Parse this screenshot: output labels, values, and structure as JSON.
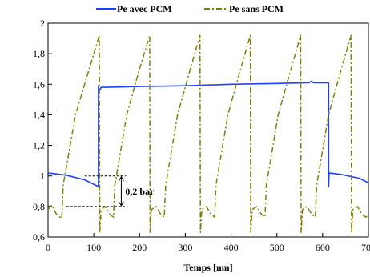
{
  "chart_data": {
    "type": "line",
    "title": "",
    "xlabel": "Temps [mn]",
    "ylabel": "",
    "xlim": [
      0,
      700
    ],
    "ylim": [
      0.6,
      2.0
    ],
    "xticks": [
      0,
      100,
      200,
      300,
      400,
      500,
      600,
      700
    ],
    "xtick_labels": [
      "0",
      "100",
      "200",
      "300",
      "400",
      "500",
      "600",
      "700"
    ],
    "yticks": [
      0.6,
      0.8,
      1.0,
      1.2,
      1.4,
      1.6,
      1.8,
      2.0
    ],
    "ytick_labels": [
      "0,6",
      "0,8",
      "1",
      "1,2",
      "1,4",
      "1,6",
      "1,8",
      "2"
    ],
    "grid": false,
    "legend_position": "top",
    "annotation": {
      "text": "0,2 bar",
      "x": 160,
      "y_top": 1.0,
      "y_bottom": 0.8
    },
    "series": [
      {
        "name": "Pe avec PCM",
        "color": "#1f3fff",
        "style": "solid",
        "points": [
          [
            0,
            1.02
          ],
          [
            40,
            1.005
          ],
          [
            80,
            0.975
          ],
          [
            110,
            0.93
          ],
          [
            110,
            1.59
          ],
          [
            112,
            1.555
          ],
          [
            116,
            1.58
          ],
          [
            130,
            1.58
          ],
          [
            200,
            1.585
          ],
          [
            300,
            1.59
          ],
          [
            400,
            1.6
          ],
          [
            500,
            1.605
          ],
          [
            570,
            1.61
          ],
          [
            576,
            1.62
          ],
          [
            580,
            1.61
          ],
          [
            613,
            1.61
          ],
          [
            613,
            0.93
          ],
          [
            614,
            1.02
          ],
          [
            640,
            1.01
          ],
          [
            680,
            0.985
          ],
          [
            700,
            0.955
          ]
        ]
      },
      {
        "name": "Pe sans PCM",
        "color": "#808000",
        "style": "dashdot",
        "points": [
          [
            0,
            0.78
          ],
          [
            8,
            0.81
          ],
          [
            18,
            0.75
          ],
          [
            30,
            0.72
          ],
          [
            33,
            0.94
          ],
          [
            60,
            1.4
          ],
          [
            88,
            1.68
          ],
          [
            112,
            1.92
          ],
          [
            113,
            0.63
          ],
          [
            116,
            0.78
          ],
          [
            125,
            0.8
          ],
          [
            135,
            0.75
          ],
          [
            143,
            0.73
          ],
          [
            146,
            0.94
          ],
          [
            172,
            1.4
          ],
          [
            198,
            1.68
          ],
          [
            222,
            1.92
          ],
          [
            223,
            0.63
          ],
          [
            226,
            0.78
          ],
          [
            236,
            0.8
          ],
          [
            246,
            0.75
          ],
          [
            254,
            0.73
          ],
          [
            257,
            0.94
          ],
          [
            283,
            1.4
          ],
          [
            309,
            1.68
          ],
          [
            332,
            1.92
          ],
          [
            333,
            0.63
          ],
          [
            336,
            0.78
          ],
          [
            346,
            0.8
          ],
          [
            356,
            0.75
          ],
          [
            364,
            0.73
          ],
          [
            367,
            0.94
          ],
          [
            393,
            1.4
          ],
          [
            419,
            1.68
          ],
          [
            442,
            1.92
          ],
          [
            443,
            0.63
          ],
          [
            446,
            0.78
          ],
          [
            456,
            0.8
          ],
          [
            466,
            0.75
          ],
          [
            474,
            0.73
          ],
          [
            477,
            0.94
          ],
          [
            503,
            1.4
          ],
          [
            529,
            1.68
          ],
          [
            552,
            1.92
          ],
          [
            553,
            0.63
          ],
          [
            556,
            0.78
          ],
          [
            566,
            0.8
          ],
          [
            576,
            0.75
          ],
          [
            584,
            0.73
          ],
          [
            587,
            0.94
          ],
          [
            613,
            1.4
          ],
          [
            639,
            1.68
          ],
          [
            662,
            1.92
          ],
          [
            663,
            0.63
          ],
          [
            666,
            0.78
          ],
          [
            676,
            0.8
          ],
          [
            686,
            0.75
          ],
          [
            694,
            0.73
          ],
          [
            700,
            0.74
          ]
        ]
      }
    ]
  }
}
